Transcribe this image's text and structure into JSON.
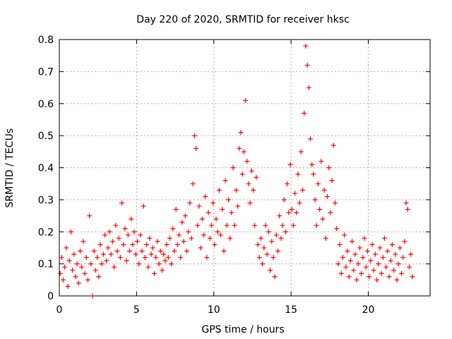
{
  "chart_data": {
    "type": "scatter",
    "title": "Day 220 of 2020, SRMTID for receiver hksc",
    "xlabel": "GPS time / hours",
    "ylabel": "SRMTID / TECUs",
    "xlim": [
      0,
      24
    ],
    "ylim": [
      0,
      0.8
    ],
    "xticks": [
      0,
      5,
      10,
      15,
      20
    ],
    "xtick_labels": [
      "0",
      "5",
      "10",
      "15",
      "20"
    ],
    "yticks": [
      0,
      0.1,
      0.2,
      0.3,
      0.4,
      0.5,
      0.6,
      0.7,
      0.8
    ],
    "ytick_labels": [
      "0",
      "0.1",
      "0.2",
      "0.3",
      "0.4",
      "0.5",
      "0.6",
      "0.7",
      "0.8"
    ],
    "grid": true,
    "marker": "+",
    "color": "#ff0000",
    "series": [
      {
        "name": "SRMTID",
        "points": [
          [
            0.05,
            0.07
          ],
          [
            0.15,
            0.12
          ],
          [
            0.25,
            0.05
          ],
          [
            0.35,
            0.09
          ],
          [
            0.45,
            0.15
          ],
          [
            0.55,
            0.03
          ],
          [
            0.65,
            0.11
          ],
          [
            0.75,
            0.2
          ],
          [
            0.85,
            0.08
          ],
          [
            0.95,
            0.13
          ],
          [
            1.05,
            0.06
          ],
          [
            1.15,
            0.1
          ],
          [
            1.25,
            0.04
          ],
          [
            1.35,
            0.14
          ],
          [
            1.45,
            0.09
          ],
          [
            1.55,
            0.17
          ],
          [
            1.65,
            0.07
          ],
          [
            1.75,
            0.12
          ],
          [
            1.85,
            0.05
          ],
          [
            1.95,
            0.25
          ],
          [
            2.05,
            0.1
          ],
          [
            2.15,
            0.0
          ],
          [
            2.25,
            0.14
          ],
          [
            2.35,
            0.08
          ],
          [
            2.45,
            0.12
          ],
          [
            2.55,
            0.06
          ],
          [
            2.65,
            0.16
          ],
          [
            2.75,
            0.1
          ],
          [
            2.85,
            0.13
          ],
          [
            2.95,
            0.19
          ],
          [
            3.05,
            0.11
          ],
          [
            3.15,
            0.15
          ],
          [
            3.25,
            0.2
          ],
          [
            3.35,
            0.13
          ],
          [
            3.45,
            0.17
          ],
          [
            3.55,
            0.09
          ],
          [
            3.65,
            0.22
          ],
          [
            3.75,
            0.14
          ],
          [
            3.85,
            0.18
          ],
          [
            3.95,
            0.12
          ],
          [
            4.05,
            0.29
          ],
          [
            4.15,
            0.16
          ],
          [
            4.25,
            0.21
          ],
          [
            4.35,
            0.11
          ],
          [
            4.45,
            0.19
          ],
          [
            4.55,
            0.14
          ],
          [
            4.65,
            0.24
          ],
          [
            4.75,
            0.16
          ],
          [
            4.85,
            0.2
          ],
          [
            4.95,
            0.13
          ],
          [
            5.05,
            0.17
          ],
          [
            5.15,
            0.1
          ],
          [
            5.25,
            0.19
          ],
          [
            5.35,
            0.14
          ],
          [
            5.45,
            0.28
          ],
          [
            5.55,
            0.12
          ],
          [
            5.65,
            0.16
          ],
          [
            5.75,
            0.09
          ],
          [
            5.85,
            0.18
          ],
          [
            5.95,
            0.13
          ],
          [
            6.05,
            0.15
          ],
          [
            6.15,
            0.07
          ],
          [
            6.25,
            0.12
          ],
          [
            6.35,
            0.17
          ],
          [
            6.45,
            0.1
          ],
          [
            6.55,
            0.14
          ],
          [
            6.65,
            0.08
          ],
          [
            6.75,
            0.13
          ],
          [
            6.85,
            0.11
          ],
          [
            6.95,
            0.16
          ],
          [
            7.05,
            0.12
          ],
          [
            7.15,
            0.18
          ],
          [
            7.25,
            0.1
          ],
          [
            7.35,
            0.21
          ],
          [
            7.45,
            0.14
          ],
          [
            7.55,
            0.27
          ],
          [
            7.65,
            0.16
          ],
          [
            7.75,
            0.19
          ],
          [
            7.85,
            0.12
          ],
          [
            7.95,
            0.23
          ],
          [
            8.05,
            0.17
          ],
          [
            8.15,
            0.25
          ],
          [
            8.25,
            0.14
          ],
          [
            8.35,
            0.2
          ],
          [
            8.45,
            0.29
          ],
          [
            8.55,
            0.18
          ],
          [
            8.65,
            0.35
          ],
          [
            8.75,
            0.5
          ],
          [
            8.85,
            0.46
          ],
          [
            8.95,
            0.22
          ],
          [
            9.05,
            0.28
          ],
          [
            9.15,
            0.15
          ],
          [
            9.25,
            0.24
          ],
          [
            9.35,
            0.19
          ],
          [
            9.45,
            0.31
          ],
          [
            9.55,
            0.12
          ],
          [
            9.65,
            0.26
          ],
          [
            9.75,
            0.18
          ],
          [
            9.85,
            0.22
          ],
          [
            9.95,
            0.29
          ],
          [
            10.05,
            0.16
          ],
          [
            10.15,
            0.24
          ],
          [
            10.25,
            0.2
          ],
          [
            10.35,
            0.33
          ],
          [
            10.45,
            0.19
          ],
          [
            10.55,
            0.27
          ],
          [
            10.65,
            0.14
          ],
          [
            10.75,
            0.36
          ],
          [
            10.85,
            0.22
          ],
          [
            10.95,
            0.3
          ],
          [
            11.05,
            0.18
          ],
          [
            11.15,
            0.26
          ],
          [
            11.25,
            0.4
          ],
          [
            11.35,
            0.22
          ],
          [
            11.45,
            0.33
          ],
          [
            11.55,
            0.28
          ],
          [
            11.65,
            0.46
          ],
          [
            11.75,
            0.51
          ],
          [
            11.85,
            0.38
          ],
          [
            11.95,
            0.45
          ],
          [
            12.05,
            0.61
          ],
          [
            12.15,
            0.42
          ],
          [
            12.25,
            0.35
          ],
          [
            12.35,
            0.29
          ],
          [
            12.45,
            0.39
          ],
          [
            12.55,
            0.33
          ],
          [
            12.65,
            0.22
          ],
          [
            12.75,
            0.37
          ],
          [
            12.85,
            0.16
          ],
          [
            12.95,
            0.12
          ],
          [
            13.05,
            0.18
          ],
          [
            13.15,
            0.1
          ],
          [
            13.25,
            0.15
          ],
          [
            13.35,
            0.22
          ],
          [
            13.45,
            0.13
          ],
          [
            13.55,
            0.2
          ],
          [
            13.65,
            0.08
          ],
          [
            13.75,
            0.17
          ],
          [
            13.85,
            0.12
          ],
          [
            13.95,
            0.06
          ],
          [
            14.05,
            0.19
          ],
          [
            14.15,
            0.14
          ],
          [
            14.25,
            0.25
          ],
          [
            14.35,
            0.18
          ],
          [
            14.45,
            0.22
          ],
          [
            14.55,
            0.3
          ],
          [
            14.65,
            0.2
          ],
          [
            14.75,
            0.35
          ],
          [
            14.85,
            0.26
          ],
          [
            14.95,
            0.41
          ],
          [
            15.05,
            0.27
          ],
          [
            15.15,
            0.22
          ],
          [
            15.25,
            0.32
          ],
          [
            15.35,
            0.26
          ],
          [
            15.45,
            0.38
          ],
          [
            15.55,
            0.29
          ],
          [
            15.65,
            0.45
          ],
          [
            15.75,
            0.33
          ],
          [
            15.85,
            0.57
          ],
          [
            15.95,
            0.78
          ],
          [
            16.05,
            0.72
          ],
          [
            16.15,
            0.65
          ],
          [
            16.25,
            0.49
          ],
          [
            16.35,
            0.41
          ],
          [
            16.45,
            0.38
          ],
          [
            16.55,
            0.3
          ],
          [
            16.65,
            0.22
          ],
          [
            16.75,
            0.35
          ],
          [
            16.85,
            0.27
          ],
          [
            16.95,
            0.42
          ],
          [
            17.05,
            0.24
          ],
          [
            17.15,
            0.33
          ],
          [
            17.25,
            0.18
          ],
          [
            17.35,
            0.31
          ],
          [
            17.45,
            0.4
          ],
          [
            17.55,
            0.26
          ],
          [
            17.65,
            0.36
          ],
          [
            17.75,
            0.47
          ],
          [
            17.85,
            0.29
          ],
          [
            17.95,
            0.21
          ],
          [
            18.05,
            0.1
          ],
          [
            18.15,
            0.16
          ],
          [
            18.25,
            0.07
          ],
          [
            18.35,
            0.12
          ],
          [
            18.45,
            0.19
          ],
          [
            18.55,
            0.09
          ],
          [
            18.65,
            0.14
          ],
          [
            18.75,
            0.06
          ],
          [
            18.85,
            0.11
          ],
          [
            18.95,
            0.17
          ],
          [
            19.05,
            0.08
          ],
          [
            19.15,
            0.13
          ],
          [
            19.25,
            0.05
          ],
          [
            19.35,
            0.1
          ],
          [
            19.45,
            0.15
          ],
          [
            19.55,
            0.07
          ],
          [
            19.65,
            0.12
          ],
          [
            19.75,
            0.18
          ],
          [
            19.85,
            0.09
          ],
          [
            19.95,
            0.14
          ],
          [
            20.05,
            0.06
          ],
          [
            20.15,
            0.11
          ],
          [
            20.25,
            0.16
          ],
          [
            20.35,
            0.08
          ],
          [
            20.45,
            0.13
          ],
          [
            20.55,
            0.05
          ],
          [
            20.65,
            0.1
          ],
          [
            20.75,
            0.15
          ],
          [
            20.85,
            0.07
          ],
          [
            20.95,
            0.12
          ],
          [
            21.05,
            0.18
          ],
          [
            21.15,
            0.09
          ],
          [
            21.25,
            0.14
          ],
          [
            21.35,
            0.06
          ],
          [
            21.45,
            0.11
          ],
          [
            21.55,
            0.16
          ],
          [
            21.65,
            0.08
          ],
          [
            21.75,
            0.13
          ],
          [
            21.85,
            0.05
          ],
          [
            21.95,
            0.1
          ],
          [
            22.05,
            0.15
          ],
          [
            22.15,
            0.07
          ],
          [
            22.25,
            0.12
          ],
          [
            22.35,
            0.17
          ],
          [
            22.45,
            0.29
          ],
          [
            22.55,
            0.27
          ],
          [
            22.65,
            0.09
          ],
          [
            22.75,
            0.13
          ],
          [
            22.85,
            0.06
          ]
        ]
      }
    ]
  }
}
